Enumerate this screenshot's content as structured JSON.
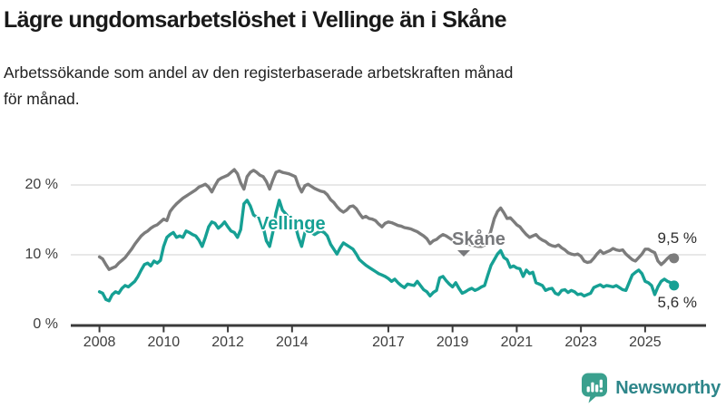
{
  "header": {
    "title": "Lägre ungdomsarbetslöshet i Vellinge än i Skåne",
    "subtitle": "Arbetssökande som andel av den registerbaserade arbetskraften månad\nför månad."
  },
  "chart_data": {
    "type": "line",
    "title": "Lägre ungdomsarbetslöshet i Vellinge än i Skåne",
    "xlabel": "",
    "ylabel": "",
    "x_unit": "year (monthly data)",
    "x_start": 2008.0,
    "x_step": 0.1,
    "x_end": 2025.9,
    "ylim": [
      0,
      23.5
    ],
    "grid": "horizontal",
    "yticks": [
      {
        "value": 0,
        "label": "0 %"
      },
      {
        "value": 10,
        "label": "10 %"
      },
      {
        "value": 20,
        "label": "20 %"
      }
    ],
    "xticks": [
      {
        "value": 2008,
        "label": "2008"
      },
      {
        "value": 2010,
        "label": "2010"
      },
      {
        "value": 2012,
        "label": "2012"
      },
      {
        "value": 2014,
        "label": "2014"
      },
      {
        "value": 2017,
        "label": "2017"
      },
      {
        "value": 2019,
        "label": "2019"
      },
      {
        "value": 2021,
        "label": "2021"
      },
      {
        "value": 2023,
        "label": "2023"
      },
      {
        "value": 2025,
        "label": "2025"
      }
    ],
    "series": [
      {
        "name": "Skåne",
        "color": "#7c7c7c",
        "label_color": "#77787b",
        "end_label": "9,5 %",
        "last_value": 9.5,
        "values": [
          9.7,
          9.4,
          8.6,
          7.9,
          8.1,
          8.3,
          8.8,
          9.2,
          9.6,
          10.2,
          10.8,
          11.5,
          12.1,
          12.7,
          13.1,
          13.4,
          13.8,
          14.1,
          14.3,
          14.7,
          15.1,
          14.9,
          16.2,
          16.8,
          17.3,
          17.7,
          18.1,
          18.4,
          18.7,
          19.0,
          19.3,
          19.7,
          19.9,
          20.1,
          19.7,
          19.0,
          19.9,
          20.7,
          21.0,
          21.2,
          21.4,
          21.8,
          22.2,
          21.6,
          20.3,
          19.4,
          21.2,
          21.8,
          22.1,
          21.8,
          21.4,
          21.2,
          20.5,
          19.4,
          20.7,
          21.8,
          22.0,
          21.8,
          21.7,
          21.6,
          21.4,
          21.2,
          19.9,
          19.0,
          19.9,
          20.1,
          19.8,
          19.5,
          19.3,
          19.1,
          19.0,
          18.6,
          17.9,
          17.5,
          16.9,
          16.4,
          16.1,
          16.4,
          16.9,
          17.0,
          16.6,
          15.9,
          15.3,
          15.5,
          15.2,
          15.1,
          14.9,
          14.4,
          14.0,
          14.5,
          14.7,
          14.6,
          14.4,
          14.2,
          14.1,
          13.9,
          13.8,
          13.7,
          13.5,
          13.3,
          13.0,
          12.7,
          12.3,
          11.6,
          12.0,
          12.2,
          12.6,
          12.9,
          12.7,
          12.4,
          12.1,
          11.9,
          11.8,
          11.7,
          11.6,
          11.5,
          11.4,
          11.3,
          11.2,
          11.2,
          11.4,
          12.0,
          13.5,
          15.2,
          16.2,
          16.7,
          16.0,
          15.2,
          15.3,
          14.8,
          14.3,
          14.0,
          13.4,
          12.9,
          12.5,
          12.7,
          12.9,
          12.4,
          12.1,
          11.9,
          11.5,
          11.3,
          11.2,
          11.4,
          11.0,
          10.7,
          10.3,
          10.1,
          10.0,
          10.1,
          9.8,
          9.1,
          8.9,
          9.0,
          9.5,
          10.1,
          10.6,
          10.2,
          10.4,
          10.6,
          10.9,
          10.7,
          10.6,
          10.7,
          10.1,
          9.7,
          9.3,
          9.1,
          9.6,
          10.1,
          10.8,
          10.8,
          10.5,
          10.3,
          9.1,
          8.6,
          9.0,
          9.5,
          9.9,
          9.5
        ]
      },
      {
        "name": "Vellinge",
        "color": "#16a094",
        "label_color": "#16a094",
        "end_label": "5,6 %",
        "last_value": 5.6,
        "values": [
          4.7,
          4.5,
          3.6,
          3.4,
          4.3,
          4.7,
          4.5,
          5.2,
          5.6,
          5.4,
          5.8,
          6.2,
          6.9,
          7.8,
          8.6,
          8.8,
          8.4,
          9.1,
          8.8,
          9.2,
          11.2,
          12.5,
          12.9,
          13.2,
          12.5,
          12.7,
          12.5,
          13.4,
          13.2,
          12.9,
          12.7,
          12.1,
          11.2,
          12.5,
          14.0,
          14.7,
          14.5,
          13.8,
          14.2,
          14.7,
          14.0,
          13.4,
          13.2,
          12.5,
          13.6,
          17.3,
          17.8,
          17.0,
          15.7,
          15.4,
          15.3,
          14.0,
          12.0,
          11.2,
          13.2,
          16.0,
          17.8,
          16.4,
          15.9,
          15.3,
          14.6,
          14.2,
          12.5,
          11.2,
          13.2,
          13.4,
          13.2,
          12.9,
          13.2,
          13.4,
          13.2,
          12.7,
          11.5,
          10.8,
          10.1,
          11.0,
          11.7,
          11.4,
          11.1,
          10.8,
          10.1,
          9.3,
          8.9,
          8.5,
          8.2,
          7.9,
          7.6,
          7.3,
          7.1,
          6.9,
          6.6,
          6.2,
          6.5,
          6.0,
          5.6,
          5.3,
          5.8,
          5.7,
          5.6,
          6.2,
          5.6,
          5.0,
          4.7,
          4.1,
          4.6,
          4.9,
          6.7,
          6.9,
          6.3,
          5.8,
          5.4,
          6.0,
          5.2,
          4.5,
          4.7,
          5.0,
          5.2,
          4.9,
          5.1,
          5.4,
          5.6,
          7.1,
          8.5,
          9.3,
          10.1,
          10.6,
          9.6,
          9.3,
          8.2,
          8.4,
          8.1,
          8.0,
          6.9,
          7.8,
          7.3,
          7.5,
          6.0,
          5.8,
          5.6,
          4.9,
          5.1,
          5.2,
          4.5,
          4.3,
          4.9,
          5.0,
          4.6,
          4.9,
          4.7,
          4.3,
          4.4,
          4.1,
          4.3,
          4.5,
          5.3,
          5.5,
          5.7,
          5.4,
          5.6,
          5.5,
          5.4,
          5.6,
          5.3,
          5.0,
          4.9,
          6.0,
          7.1,
          7.5,
          7.8,
          7.3,
          6.2,
          6.0,
          5.6,
          4.3,
          5.4,
          6.2,
          6.5,
          6.2,
          6.0,
          5.6
        ]
      }
    ],
    "colors": {
      "grid": "#d9d9d9",
      "axis": "#3a3a3a",
      "tick_text": "#3e3e3e",
      "background": "#ffffff"
    }
  },
  "footer": {
    "brand": "Newsworthy",
    "brand_icon_color": "#3aa08e",
    "brand_text_color": "#2e868a"
  }
}
